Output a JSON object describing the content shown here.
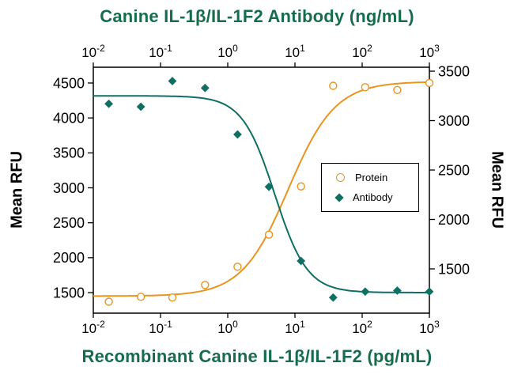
{
  "titles": {
    "top": "Canine IL-1β/IL-1F2 Antibody (ng/mL)",
    "bottom": "Recombinant Canine IL-1β/IL-1F2 (pg/mL)",
    "left": "Mean RFU",
    "right": "Mean RFU"
  },
  "colors": {
    "title": "#166D4D",
    "protein": "#E8941F",
    "antibody": "#0F6F63",
    "axis": "#000000",
    "background": "#FFFFFF"
  },
  "legend": {
    "items": [
      {
        "label": "Protein",
        "marker": "open-circle",
        "series": "Protein"
      },
      {
        "label": "Antibody",
        "marker": "filled-diamond",
        "series": "Antibody"
      }
    ]
  },
  "chart_data": {
    "type": "scatter",
    "x_scale": "log",
    "xlim": [
      0.01,
      1000
    ],
    "x_tick_exponents": [
      -2,
      -1,
      0,
      1,
      2,
      3
    ],
    "x_unit_top": "ng/mL",
    "x_unit_bottom": "pg/mL",
    "grid": false,
    "legend_position": "middle-right",
    "axes": {
      "left": {
        "label": "Mean RFU",
        "ticks": [
          4500,
          4000,
          3500,
          3000,
          2500,
          2000,
          1500
        ],
        "window": [
          1206,
          4726
        ]
      },
      "right": {
        "label": "Mean RFU",
        "ticks": [
          3500,
          3000,
          2500,
          2000,
          1500
        ],
        "window": [
          1052,
          3540
        ]
      }
    },
    "series": [
      {
        "name": "Protein",
        "axis": "left",
        "marker": "open-circle",
        "color": "#E8941F",
        "x": [
          0.017,
          0.051,
          0.15,
          0.46,
          1.4,
          4.1,
          12.3,
          37,
          111,
          333,
          1000
        ],
        "y": [
          1370,
          1440,
          1430,
          1610,
          1870,
          2330,
          3020,
          4460,
          4440,
          4400,
          4500
        ],
        "fit": {
          "bottom": 1450,
          "top": 4520,
          "mid": 8,
          "hill": 1.25,
          "direction": "up"
        }
      },
      {
        "name": "Antibody",
        "axis": "right",
        "marker": "filled-diamond",
        "color": "#0F6F63",
        "x": [
          0.017,
          0.051,
          0.15,
          0.46,
          1.4,
          4.1,
          12.3,
          37,
          111,
          333,
          1000
        ],
        "y": [
          3170,
          3140,
          3400,
          3330,
          2860,
          2330,
          1580,
          1210,
          1270,
          1280,
          1270
        ],
        "fit": {
          "top": 3250,
          "bottom": 1260,
          "mid": 5,
          "hill": 1.8,
          "direction": "down"
        }
      }
    ]
  }
}
